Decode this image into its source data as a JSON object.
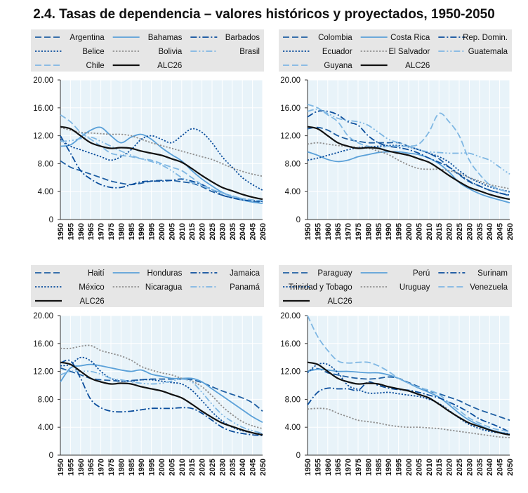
{
  "title": "2.4. Tasas de dependencia – valores históricos y proyectados, 1950-2050",
  "colors": {
    "plot_bg": "#e8f3f9",
    "legend_bg": "#e6e6e6",
    "grid": "#ffffff",
    "dark_blue": "#1f5fa3",
    "mid_blue": "#0a4d9c",
    "light_blue": "#5aa0d8",
    "sky_blue": "#7fb7e3",
    "grey": "#8f8f8f",
    "black": "#111111"
  },
  "chart_data": [
    {
      "type": "line",
      "title": "",
      "x": [
        1950,
        1955,
        1960,
        1965,
        1970,
        1975,
        1980,
        1985,
        1990,
        1995,
        2000,
        2005,
        2010,
        2015,
        2020,
        2025,
        2030,
        2035,
        2040,
        2045,
        2050
      ],
      "ylim": [
        0,
        20
      ],
      "yticks": [
        "0",
        "4.00",
        "8.00",
        "12.00",
        "16.00",
        "20.00"
      ],
      "grid": true,
      "legend_placement": "top",
      "legend_columns": 3,
      "series": [
        {
          "name": "Argentina",
          "style": "dashed",
          "color": "#1f5fa3",
          "values": [
            8.4,
            7.5,
            7.0,
            6.5,
            6.0,
            5.5,
            5.2,
            5.0,
            5.2,
            5.5,
            5.6,
            5.6,
            5.4,
            5.2,
            4.7,
            4.0,
            3.5,
            3.1,
            2.8,
            2.6,
            2.5
          ]
        },
        {
          "name": "Bahamas",
          "style": "solid",
          "color": "#5aa0d8",
          "values": [
            10.5,
            10.7,
            11.8,
            12.8,
            13.2,
            12.0,
            11.0,
            11.8,
            12.2,
            11.5,
            10.3,
            9.3,
            8.4,
            7.0,
            5.8,
            4.8,
            3.9,
            3.3,
            2.8,
            2.5,
            2.3
          ]
        },
        {
          "name": "Barbados",
          "style": "dashdot",
          "color": "#0a4d9c",
          "values": [
            12.0,
            9.5,
            7.0,
            5.8,
            5.0,
            4.6,
            4.6,
            5.0,
            5.4,
            5.5,
            5.5,
            5.6,
            5.8,
            5.5,
            5.0,
            4.3,
            3.5,
            3.1,
            2.8,
            2.7,
            2.6
          ]
        },
        {
          "name": "Belice",
          "style": "dotted",
          "color": "#0a4d9c",
          "values": [
            11.5,
            10.5,
            10.0,
            9.5,
            9.0,
            8.5,
            9.0,
            10.0,
            11.5,
            12.0,
            11.5,
            11.0,
            12.0,
            13.0,
            12.5,
            11.0,
            9.0,
            7.5,
            6.0,
            5.0,
            4.2
          ]
        },
        {
          "name": "Bolivia",
          "style": "dotted",
          "color": "#8f8f8f",
          "values": [
            13.2,
            12.8,
            12.5,
            12.4,
            12.3,
            12.2,
            12.2,
            12.0,
            11.5,
            11.0,
            10.6,
            10.2,
            9.8,
            9.4,
            9.0,
            8.6,
            8.0,
            7.4,
            6.9,
            6.5,
            6.2
          ]
        },
        {
          "name": "Brasil",
          "style": "dashdotdot",
          "color": "#7fb7e3",
          "values": [
            11.2,
            11.3,
            11.6,
            11.8,
            11.2,
            10.5,
            9.8,
            9.2,
            8.7,
            8.3,
            7.8,
            7.0,
            6.0,
            5.3,
            4.8,
            4.3,
            3.8,
            3.4,
            3.0,
            2.8,
            2.6
          ]
        },
        {
          "name": "Chile",
          "style": "dashed",
          "color": "#7fb7e3",
          "values": [
            15.0,
            14.0,
            12.5,
            11.5,
            10.5,
            9.5,
            9.2,
            9.0,
            8.7,
            8.5,
            8.0,
            7.5,
            7.0,
            6.0,
            5.0,
            4.3,
            3.8,
            3.3,
            3.0,
            2.8,
            2.7
          ]
        },
        {
          "name": "ALC26",
          "style": "solid-bold",
          "color": "#111111",
          "values": [
            13.3,
            13.0,
            12.0,
            11.0,
            10.5,
            10.2,
            10.3,
            10.2,
            9.8,
            9.5,
            9.2,
            8.7,
            8.2,
            7.3,
            6.3,
            5.4,
            4.6,
            4.1,
            3.6,
            3.2,
            2.9
          ]
        }
      ]
    },
    {
      "type": "line",
      "title": "",
      "x": [
        1950,
        1955,
        1960,
        1965,
        1970,
        1975,
        1980,
        1985,
        1990,
        1995,
        2000,
        2005,
        2010,
        2015,
        2020,
        2025,
        2030,
        2035,
        2040,
        2045,
        2050
      ],
      "ylim": [
        0,
        20
      ],
      "yticks": [
        "0",
        "4.00",
        "8.00",
        "12.00",
        "16.00",
        "20.00"
      ],
      "grid": true,
      "legend_placement": "top",
      "legend_columns": 3,
      "series": [
        {
          "name": "Colombia",
          "style": "dashed",
          "color": "#1f5fa3",
          "values": [
            13.0,
            13.2,
            12.8,
            12.0,
            11.5,
            11.2,
            11.0,
            11.0,
            11.0,
            11.0,
            10.5,
            10.0,
            9.5,
            8.7,
            7.5,
            6.4,
            5.4,
            4.8,
            4.2,
            3.8,
            3.4
          ]
        },
        {
          "name": "Costa Rica",
          "style": "solid",
          "color": "#5aa0d8",
          "values": [
            9.7,
            9.2,
            8.6,
            8.3,
            8.5,
            9.0,
            9.3,
            9.6,
            9.7,
            9.7,
            9.5,
            9.3,
            8.8,
            8.0,
            6.8,
            5.3,
            4.4,
            3.7,
            3.2,
            2.8,
            2.4
          ]
        },
        {
          "name": "Rep. Domin.",
          "style": "dashdot",
          "color": "#0a4d9c",
          "values": [
            14.7,
            15.5,
            15.5,
            15.0,
            14.0,
            13.5,
            12.0,
            11.0,
            10.5,
            10.3,
            10.0,
            9.5,
            8.8,
            8.2,
            7.5,
            6.5,
            5.5,
            4.8,
            4.2,
            3.8,
            3.5
          ]
        },
        {
          "name": "Ecuador",
          "style": "dotted",
          "color": "#0a4d9c",
          "values": [
            8.5,
            8.8,
            9.2,
            9.6,
            10.0,
            10.3,
            10.4,
            10.5,
            10.6,
            10.6,
            10.4,
            10.0,
            9.5,
            9.0,
            8.2,
            7.0,
            6.0,
            5.3,
            4.7,
            4.3,
            4.0
          ]
        },
        {
          "name": "El Salvador",
          "style": "dotted",
          "color": "#8f8f8f",
          "values": [
            10.8,
            11.0,
            10.8,
            10.6,
            10.5,
            10.3,
            10.2,
            9.8,
            9.3,
            8.5,
            7.8,
            7.3,
            7.2,
            7.2,
            7.0,
            6.6,
            6.0,
            5.5,
            5.0,
            4.7,
            4.4
          ]
        },
        {
          "name": "Guatemala",
          "style": "dashdotdot",
          "color": "#7fb7e3",
          "values": [
            15.5,
            15.8,
            15.2,
            14.5,
            14.2,
            14.0,
            13.5,
            12.5,
            11.5,
            11.0,
            10.5,
            10.0,
            9.7,
            9.6,
            9.5,
            9.5,
            9.5,
            9.0,
            8.5,
            7.5,
            6.5
          ]
        },
        {
          "name": "Guyana",
          "style": "dashed",
          "color": "#7fb7e3",
          "values": [
            16.5,
            16.0,
            15.0,
            14.0,
            12.0,
            11.0,
            10.5,
            10.3,
            10.5,
            10.5,
            10.5,
            10.8,
            12.5,
            15.2,
            14.0,
            12.0,
            8.5,
            6.5,
            5.0,
            4.3,
            3.9
          ]
        },
        {
          "name": "ALC26",
          "style": "solid-bold",
          "color": "#111111",
          "values": [
            13.3,
            13.0,
            12.0,
            11.0,
            10.5,
            10.2,
            10.3,
            10.2,
            9.8,
            9.5,
            9.2,
            8.7,
            8.2,
            7.3,
            6.3,
            5.4,
            4.6,
            4.1,
            3.6,
            3.2,
            2.9
          ]
        }
      ]
    },
    {
      "type": "line",
      "title": "",
      "x": [
        1950,
        1955,
        1960,
        1965,
        1970,
        1975,
        1980,
        1985,
        1990,
        1995,
        2000,
        2005,
        2010,
        2015,
        2020,
        2025,
        2030,
        2035,
        2040,
        2045,
        2050
      ],
      "ylim": [
        0,
        20
      ],
      "yticks": [
        "0",
        "4.00",
        "8.00",
        "12.00",
        "16.00",
        "20.00"
      ],
      "grid": true,
      "legend_placement": "top",
      "legend_columns": 3,
      "series": [
        {
          "name": "Haití",
          "style": "dashed",
          "color": "#1f5fa3",
          "values": [
            12.5,
            12.0,
            11.5,
            11.0,
            10.8,
            10.7,
            10.6,
            10.7,
            10.8,
            10.9,
            10.9,
            10.9,
            10.9,
            10.8,
            10.4,
            9.8,
            9.2,
            8.7,
            8.2,
            7.5,
            6.3
          ]
        },
        {
          "name": "Honduras",
          "style": "solid",
          "color": "#5aa0d8",
          "values": [
            10.5,
            12.5,
            12.8,
            13.0,
            12.8,
            12.5,
            12.2,
            12.0,
            12.2,
            11.6,
            11.3,
            11.0,
            11.0,
            11.0,
            10.5,
            9.5,
            8.5,
            7.5,
            6.5,
            5.5,
            4.7
          ]
        },
        {
          "name": "Jamaica",
          "style": "dashdot",
          "color": "#0a4d9c",
          "values": [
            13.2,
            13.5,
            11.0,
            8.0,
            6.8,
            6.3,
            6.2,
            6.3,
            6.5,
            6.7,
            6.7,
            6.7,
            6.8,
            6.7,
            6.0,
            5.0,
            4.0,
            3.4,
            3.1,
            2.9,
            2.8
          ]
        },
        {
          "name": "México",
          "style": "dotted",
          "color": "#0a4d9c",
          "values": [
            12.8,
            13.0,
            14.0,
            13.5,
            12.0,
            11.0,
            10.6,
            10.6,
            10.8,
            10.8,
            10.6,
            10.4,
            10.2,
            9.3,
            7.8,
            6.2,
            4.9,
            4.0,
            3.5,
            3.2,
            3.0
          ]
        },
        {
          "name": "Nicaragua",
          "style": "dotted",
          "color": "#8f8f8f",
          "values": [
            15.3,
            15.3,
            15.6,
            15.7,
            15.0,
            14.6,
            14.2,
            13.6,
            12.7,
            12.2,
            11.8,
            11.5,
            11.0,
            10.6,
            9.8,
            8.5,
            7.0,
            5.8,
            4.8,
            4.2,
            3.8
          ]
        },
        {
          "name": "Panamá",
          "style": "dashdotdot",
          "color": "#7fb7e3",
          "values": [
            11.5,
            12.0,
            12.0,
            12.0,
            11.6,
            11.0,
            10.8,
            10.5,
            10.3,
            10.2,
            10.3,
            10.6,
            10.9,
            10.5,
            9.0,
            7.3,
            5.8,
            4.8,
            4.0,
            3.5,
            3.1
          ]
        },
        {
          "name": "ALC26",
          "style": "solid-bold",
          "color": "#111111",
          "values": [
            13.3,
            13.0,
            12.0,
            11.0,
            10.5,
            10.2,
            10.3,
            10.2,
            9.8,
            9.5,
            9.2,
            8.7,
            8.2,
            7.3,
            6.3,
            5.4,
            4.6,
            4.1,
            3.6,
            3.2,
            2.9
          ]
        }
      ]
    },
    {
      "type": "line",
      "title": "",
      "x": [
        1950,
        1955,
        1960,
        1965,
        1970,
        1975,
        1980,
        1985,
        1990,
        1995,
        2000,
        2005,
        2010,
        2015,
        2020,
        2025,
        2030,
        2035,
        2040,
        2045,
        2050
      ],
      "ylim": [
        0,
        20
      ],
      "yticks": [
        "0",
        "4.00",
        "8.00",
        "12.00",
        "16.00",
        "20.00"
      ],
      "grid": true,
      "legend_placement": "top",
      "legend_columns": 3,
      "series": [
        {
          "name": "Paraguay",
          "style": "dashed",
          "color": "#1f5fa3",
          "values": [
            12.0,
            12.4,
            11.8,
            11.5,
            11.2,
            11.0,
            10.9,
            11.0,
            11.2,
            11.0,
            10.4,
            9.8,
            9.2,
            8.8,
            8.3,
            7.8,
            7.1,
            6.5,
            6.0,
            5.5,
            5.0
          ]
        },
        {
          "name": "Perú",
          "style": "solid",
          "color": "#5aa0d8",
          "values": [
            12.0,
            12.3,
            12.2,
            12.0,
            12.0,
            11.9,
            11.8,
            11.8,
            11.5,
            11.0,
            10.3,
            9.6,
            9.0,
            8.3,
            7.2,
            6.0,
            5.0,
            4.3,
            3.7,
            3.3,
            3.0
          ]
        },
        {
          "name": "Surinam",
          "style": "dashdot",
          "color": "#0a4d9c",
          "values": [
            7.2,
            9.0,
            9.6,
            9.5,
            9.5,
            9.3,
            10.5,
            10.0,
            9.6,
            9.4,
            9.3,
            9.0,
            8.6,
            8.2,
            7.6,
            6.9,
            6.1,
            5.2,
            4.6,
            4.0,
            3.3
          ]
        },
        {
          "name": "Trinidad y Tobago",
          "style": "dotted",
          "color": "#0a4d9c",
          "values": [
            11.8,
            13.0,
            13.0,
            11.8,
            10.0,
            9.4,
            8.9,
            8.9,
            9.0,
            8.8,
            8.6,
            8.4,
            8.0,
            7.4,
            6.4,
            5.3,
            4.4,
            3.8,
            3.4,
            3.2,
            3.1
          ]
        },
        {
          "name": "Uruguay",
          "style": "dotted",
          "color": "#8f8f8f",
          "values": [
            6.6,
            6.7,
            6.6,
            6.0,
            5.5,
            5.0,
            4.8,
            4.6,
            4.3,
            4.1,
            4.0,
            4.0,
            3.9,
            3.8,
            3.6,
            3.4,
            3.2,
            3.0,
            2.8,
            2.6,
            2.5
          ]
        },
        {
          "name": "Venezuela",
          "style": "dashed",
          "color": "#7fb7e3",
          "values": [
            20.0,
            17.0,
            15.0,
            13.5,
            13.2,
            13.3,
            13.3,
            12.8,
            12.0,
            11.0,
            10.3,
            9.7,
            9.3,
            8.7,
            7.5,
            6.4,
            5.3,
            4.6,
            4.0,
            3.6,
            3.4
          ]
        },
        {
          "name": "ALC26",
          "style": "solid-bold",
          "color": "#111111",
          "values": [
            13.3,
            13.0,
            12.0,
            11.0,
            10.5,
            10.2,
            10.3,
            10.2,
            9.8,
            9.5,
            9.2,
            8.7,
            8.2,
            7.3,
            6.3,
            5.4,
            4.6,
            4.1,
            3.6,
            3.2,
            2.9
          ]
        }
      ]
    }
  ]
}
